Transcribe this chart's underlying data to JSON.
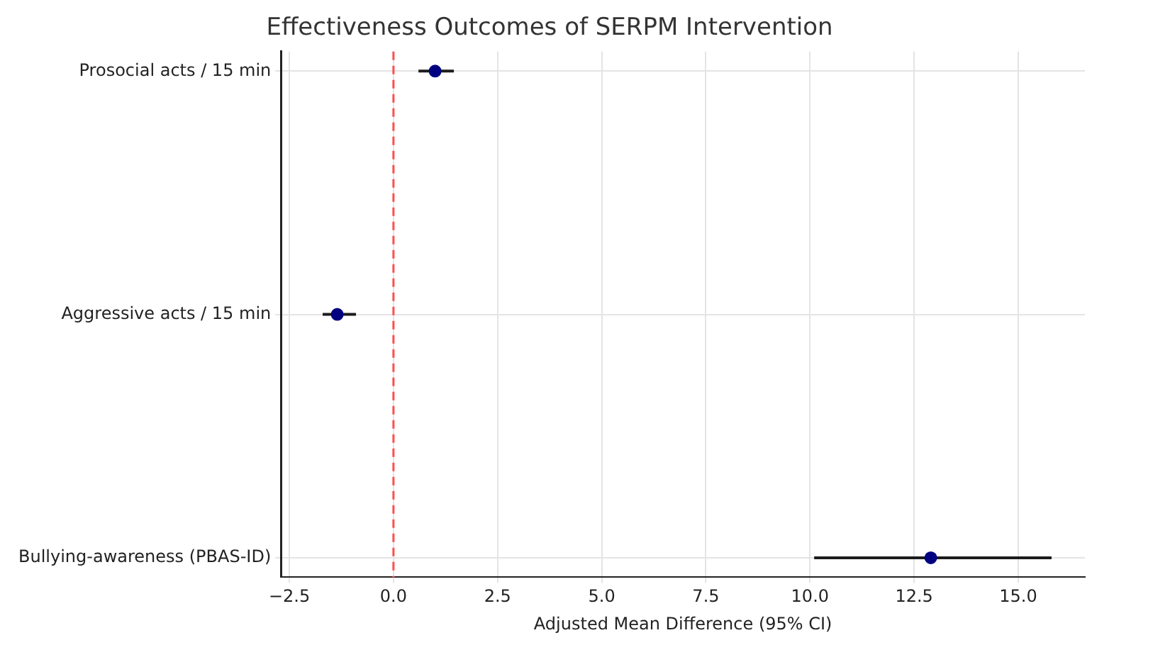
{
  "chart_data": {
    "type": "scatter",
    "orientation": "horizontal",
    "title": "Effectiveness Outcomes of SERPM Intervention",
    "xlabel": "Adjusted Mean Difference (95% CI)",
    "categories": [
      "Prosocial acts / 15 min",
      "Aggressive acts / 15 min",
      "Bullying-awareness (PBAS-ID)"
    ],
    "series": [
      {
        "color": "#000080",
        "values": [
          1.0,
          -1.35,
          12.9
        ],
        "errors": [
          [
            0.6,
            1.45
          ],
          [
            -1.7,
            -0.9
          ],
          [
            10.1,
            15.8
          ]
        ]
      }
    ],
    "xlim": [
      -2.7,
      16.6
    ],
    "xticks": [
      {
        "value": -2.5,
        "label": "−2.5"
      },
      {
        "value": 0,
        "label": "0.0"
      },
      {
        "value": 2.5,
        "label": "2.5"
      },
      {
        "value": 5,
        "label": "5.0"
      },
      {
        "value": 7.5,
        "label": "7.5"
      },
      {
        "value": 10,
        "label": "10.0"
      },
      {
        "value": 12.5,
        "label": "12.5"
      },
      {
        "value": 15,
        "label": "15.0"
      }
    ],
    "ref_lines": [
      {
        "axis": "x",
        "value": 0,
        "color": "#ff4d4d",
        "line_style": "dashed"
      }
    ],
    "grid": true,
    "legend": false,
    "marker": "circle"
  }
}
